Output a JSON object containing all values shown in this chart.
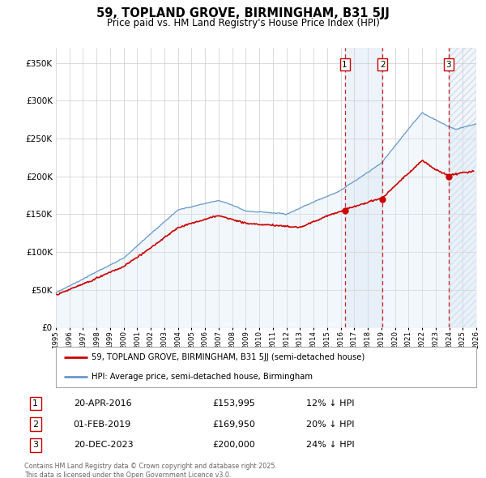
{
  "title": "59, TOPLAND GROVE, BIRMINGHAM, B31 5JJ",
  "subtitle": "Price paid vs. HM Land Registry's House Price Index (HPI)",
  "legend_label_red": "59, TOPLAND GROVE, BIRMINGHAM, B31 5JJ (semi-detached house)",
  "legend_label_blue": "HPI: Average price, semi-detached house, Birmingham",
  "footer": "Contains HM Land Registry data © Crown copyright and database right 2025.\nThis data is licensed under the Open Government Licence v3.0.",
  "transactions": [
    {
      "num": 1,
      "date": "20-APR-2016",
      "price": "£153,995",
      "pct": "12% ↓ HPI",
      "year": 2016.3
    },
    {
      "num": 2,
      "date": "01-FEB-2019",
      "price": "£169,950",
      "pct": "20% ↓ HPI",
      "year": 2019.08
    },
    {
      "num": 3,
      "date": "20-DEC-2023",
      "price": "£200,000",
      "pct": "24% ↓ HPI",
      "year": 2023.96
    }
  ],
  "ylim": [
    0,
    370000
  ],
  "xlim_start": 1995,
  "xlim_end": 2026,
  "red_color": "#cc0000",
  "blue_color": "#6699cc",
  "blue_fill_color": "#dce9f7",
  "blue_shade_color": "#dce9f7",
  "hatch_color": "#aabbd0",
  "vline_color": "#cc0000",
  "grid_color": "#cccccc",
  "bg_color": "#ffffff"
}
